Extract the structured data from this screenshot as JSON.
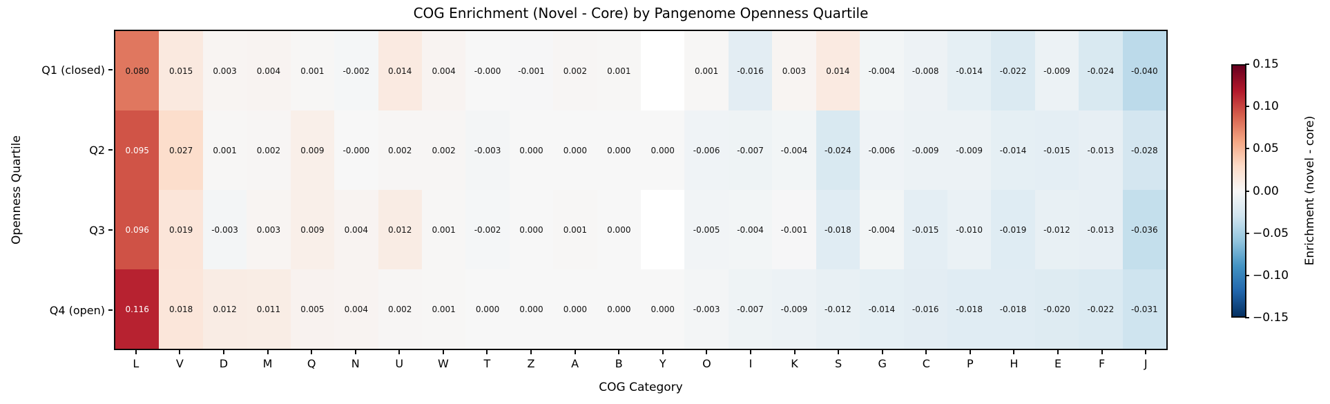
{
  "chart_data": {
    "type": "heatmap",
    "title": "COG Enrichment (Novel - Core) by Pangenome Openness Quartile",
    "xlabel": "COG Category",
    "ylabel": "Openness Quartile",
    "categories": [
      "L",
      "V",
      "D",
      "M",
      "Q",
      "N",
      "U",
      "W",
      "T",
      "Z",
      "A",
      "B",
      "Y",
      "O",
      "I",
      "K",
      "S",
      "G",
      "C",
      "P",
      "H",
      "E",
      "F",
      "J"
    ],
    "rows": [
      {
        "label": "Q1 (closed)",
        "values": [
          "0.080",
          "0.015",
          "0.003",
          "0.004",
          "0.001",
          "-0.002",
          "0.014",
          "0.004",
          "-0.000",
          "-0.001",
          "0.002",
          "0.001",
          null,
          "0.001",
          "-0.016",
          "0.003",
          "0.014",
          "-0.004",
          "-0.008",
          "-0.014",
          "-0.022",
          "-0.009",
          "-0.024",
          "-0.040"
        ]
      },
      {
        "label": "Q2",
        "values": [
          "0.095",
          "0.027",
          "0.001",
          "0.002",
          "0.009",
          "-0.000",
          "0.002",
          "0.002",
          "-0.003",
          "0.000",
          "0.000",
          "0.000",
          "0.000",
          "-0.006",
          "-0.007",
          "-0.004",
          "-0.024",
          "-0.006",
          "-0.009",
          "-0.009",
          "-0.014",
          "-0.015",
          "-0.013",
          "-0.028"
        ]
      },
      {
        "label": "Q3",
        "values": [
          "0.096",
          "0.019",
          "-0.003",
          "0.003",
          "0.009",
          "0.004",
          "0.012",
          "0.001",
          "-0.002",
          "0.000",
          "0.001",
          "0.000",
          null,
          "-0.005",
          "-0.004",
          "-0.001",
          "-0.018",
          "-0.004",
          "-0.015",
          "-0.010",
          "-0.019",
          "-0.012",
          "-0.013",
          "-0.036"
        ]
      },
      {
        "label": "Q4 (open)",
        "values": [
          "0.116",
          "0.018",
          "0.012",
          "0.011",
          "0.005",
          "0.004",
          "0.002",
          "0.001",
          "0.000",
          "0.000",
          "0.000",
          "0.000",
          "0.000",
          "-0.003",
          "-0.007",
          "-0.009",
          "-0.012",
          "-0.014",
          "-0.016",
          "-0.018",
          "-0.018",
          "-0.020",
          "-0.022",
          "-0.031"
        ]
      }
    ],
    "colorbar": {
      "label": "Enrichment (novel - core)",
      "ticks": [
        "0.15",
        "0.10",
        "0.05",
        "0.00",
        "−0.05",
        "−0.10",
        "−0.15"
      ],
      "vmin": -0.15,
      "vmax": 0.15,
      "colormap": "RdBu_r",
      "gradient_stops_low_to_high": [
        "#053061",
        "#2166ac",
        "#4393c3",
        "#92c5de",
        "#d1e5f0",
        "#f7f7f7",
        "#fddbc7",
        "#f4a582",
        "#d6604d",
        "#b2182b",
        "#67001f"
      ]
    },
    "annotation": {
      "white_text_threshold": 0.09,
      "nan_cell_color": "#ffffff",
      "dark_text_color": "#111111",
      "light_text_color": "#ffffff"
    },
    "layout": {
      "grid": "off",
      "legend": "colorbar-right"
    }
  }
}
